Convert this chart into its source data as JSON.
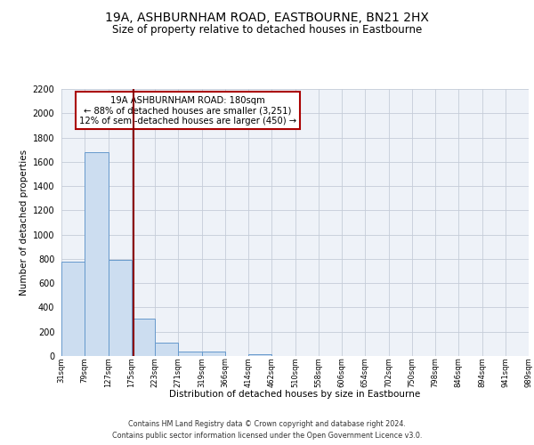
{
  "title": "19A, ASHBURNHAM ROAD, EASTBOURNE, BN21 2HX",
  "subtitle": "Size of property relative to detached houses in Eastbourne",
  "xlabel": "Distribution of detached houses by size in Eastbourne",
  "ylabel": "Number of detached properties",
  "bin_labels": [
    "31sqm",
    "79sqm",
    "127sqm",
    "175sqm",
    "223sqm",
    "271sqm",
    "319sqm",
    "366sqm",
    "414sqm",
    "462sqm",
    "510sqm",
    "558sqm",
    "606sqm",
    "654sqm",
    "702sqm",
    "750sqm",
    "798sqm",
    "846sqm",
    "894sqm",
    "941sqm",
    "989sqm"
  ],
  "bar_values": [
    775,
    1680,
    795,
    305,
    110,
    37,
    35,
    0,
    18,
    0,
    0,
    0,
    0,
    0,
    0,
    0,
    0,
    0,
    0,
    0
  ],
  "bar_color": "#ccddf0",
  "bar_edge_color": "#6699cc",
  "property_line_color": "#8b0000",
  "ylim": [
    0,
    2200
  ],
  "yticks": [
    0,
    200,
    400,
    600,
    800,
    1000,
    1200,
    1400,
    1600,
    1800,
    2000,
    2200
  ],
  "annotation_title": "19A ASHBURNHAM ROAD: 180sqm",
  "annotation_line1": "← 88% of detached houses are smaller (3,251)",
  "annotation_line2": "12% of semi-detached houses are larger (450) →",
  "annotation_box_color": "#ffffff",
  "annotation_box_edge_color": "#aa0000",
  "footer_line1": "Contains HM Land Registry data © Crown copyright and database right 2024.",
  "footer_line2": "Contains public sector information licensed under the Open Government Licence v3.0.",
  "bg_color": "#eef2f8",
  "grid_color": "#c5ccd8",
  "title_fontsize": 10,
  "subtitle_fontsize": 8.5
}
